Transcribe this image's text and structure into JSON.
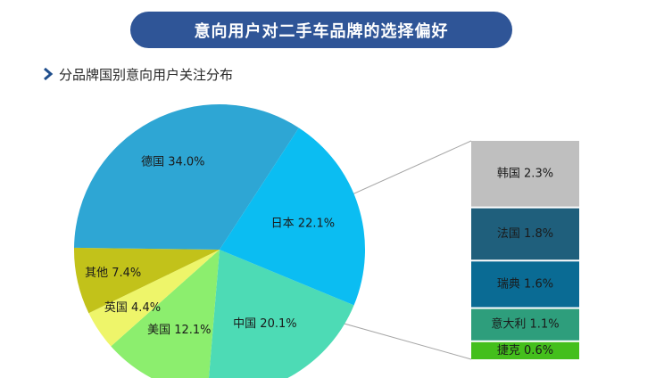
{
  "header": {
    "title": "意向用户对二手车品牌的选择偏好",
    "subtitle": "分品牌国别意向用户关注分布"
  },
  "icons": {
    "subtitle_marker": "chevron-right-icon"
  },
  "chart_data": {
    "type": "pie",
    "title": "",
    "slices": [
      {
        "label": "中国 20.1%",
        "value": 20.1,
        "color": "#4ddbb5"
      },
      {
        "label": "美国 12.1%",
        "value": 12.1,
        "color": "#8cee6e"
      },
      {
        "label": "英国 4.4%",
        "value": 4.4,
        "color": "#eef56a"
      },
      {
        "label": "其他 7.4%",
        "value": 7.4,
        "color": "#c2c21a"
      },
      {
        "label": "德国 34.0%",
        "value": 34.0,
        "color": "#2ea6d4"
      },
      {
        "label": "日本 22.1%",
        "value": 22.1,
        "color": "#0bbdf2"
      }
    ],
    "breakdown_of": "其他 7.4%",
    "breakdown": [
      {
        "label": "韩国 2.3%",
        "value": 2.3,
        "color": "#bfbfbf"
      },
      {
        "label": "法国 1.8%",
        "value": 1.8,
        "color": "#1f5f7c"
      },
      {
        "label": "瑞典 1.6%",
        "value": 1.6,
        "color": "#0a6b94"
      },
      {
        "label": "意大利 1.1%",
        "value": 1.1,
        "color": "#2e9e7c"
      },
      {
        "label": "捷克 0.6%",
        "value": 0.6,
        "color": "#44bf1c"
      }
    ]
  }
}
